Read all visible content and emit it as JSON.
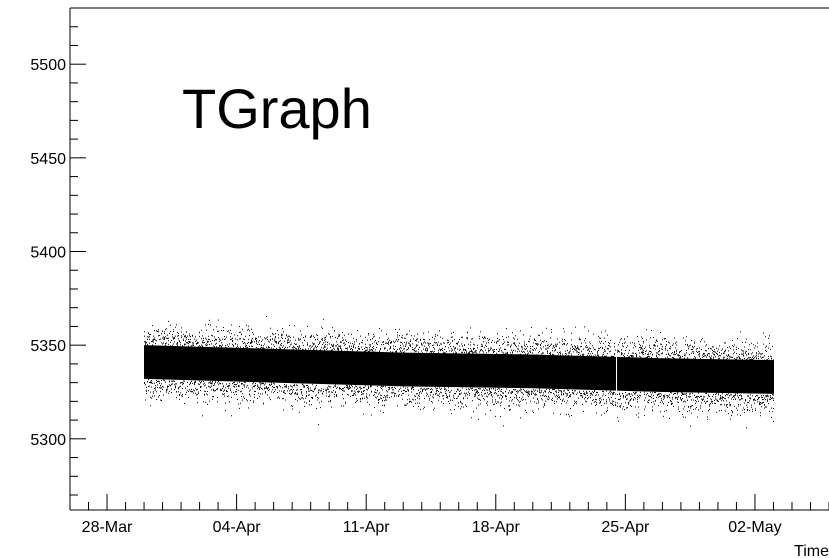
{
  "chart_data": {
    "type": "scatter",
    "title": "TGraph",
    "xlabel": "Time",
    "ylabel": "",
    "x_axis": {
      "kind": "date",
      "range": [
        "2016-03-26",
        "2016-05-06"
      ],
      "tick_labels": [
        "28-Mar",
        "04-Apr",
        "11-Apr",
        "18-Apr",
        "25-Apr",
        "02-May"
      ],
      "tick_dates": [
        "2016-03-28",
        "2016-04-04",
        "2016-04-11",
        "2016-04-18",
        "2016-04-25",
        "2016-05-02"
      ]
    },
    "y_axis": {
      "range": [
        5262,
        5530
      ],
      "tick_labels": [
        "5300",
        "5350",
        "5400",
        "5450",
        "5500"
      ],
      "tick_values": [
        5300,
        5350,
        5400,
        5450,
        5500
      ]
    },
    "grid": false,
    "legend": "none",
    "marker_color": "#000000",
    "series": [
      {
        "x_range": [
          "2016-03-30",
          "2016-05-03"
        ],
        "trend": {
          "x": [
            "2016-03-30",
            "2016-04-06",
            "2016-04-13",
            "2016-04-20",
            "2016-04-27",
            "2016-05-03"
          ],
          "y_center": [
            5341,
            5339,
            5337,
            5336,
            5334,
            5333
          ]
        },
        "band_half_width": 9,
        "outlier_spread": 16,
        "gaps": [
          "2016-04-24"
        ]
      }
    ]
  }
}
